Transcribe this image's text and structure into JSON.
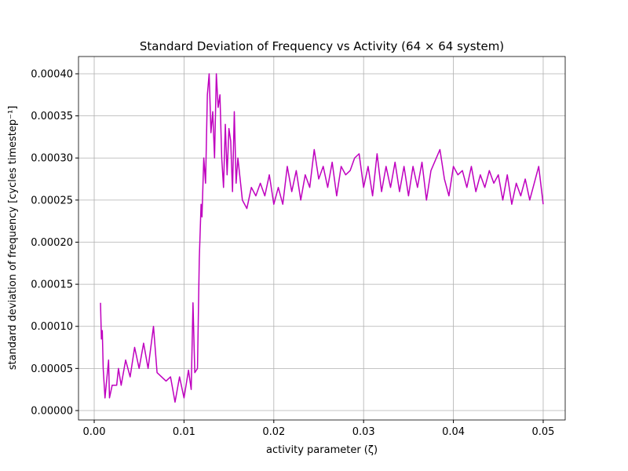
{
  "chart_data": {
    "type": "line",
    "title": "Standard Deviation of Frequency vs Activity (64 × 64 system)",
    "x_label": "activity parameter (ζ)",
    "y_label": "standard deviation of frequency [cycles timestep⁻¹]",
    "x": [
      0.0007,
      0.0008,
      0.0009,
      0.001,
      0.0012,
      0.0016,
      0.0017,
      0.002,
      0.0025,
      0.0027,
      0.003,
      0.0035,
      0.004,
      0.0045,
      0.005,
      0.0055,
      0.006,
      0.0066,
      0.007,
      0.008,
      0.0085,
      0.009,
      0.0095,
      0.01,
      0.0105,
      0.0108,
      0.011,
      0.0112,
      0.0115,
      0.0117,
      0.0119,
      0.012,
      0.0122,
      0.0124,
      0.0126,
      0.0128,
      0.013,
      0.0132,
      0.0134,
      0.0136,
      0.0138,
      0.014,
      0.0142,
      0.0144,
      0.0146,
      0.0148,
      0.015,
      0.0152,
      0.0154,
      0.0156,
      0.0158,
      0.016,
      0.0165,
      0.017,
      0.0175,
      0.018,
      0.0185,
      0.019,
      0.0195,
      0.02,
      0.0205,
      0.021,
      0.0215,
      0.022,
      0.0225,
      0.023,
      0.0235,
      0.024,
      0.0245,
      0.025,
      0.0255,
      0.026,
      0.0265,
      0.027,
      0.0275,
      0.028,
      0.0285,
      0.029,
      0.0295,
      0.03,
      0.0305,
      0.031,
      0.0315,
      0.032,
      0.0325,
      0.033,
      0.0335,
      0.034,
      0.0345,
      0.035,
      0.0355,
      0.036,
      0.0365,
      0.037,
      0.0375,
      0.0385,
      0.039,
      0.0395,
      0.04,
      0.0405,
      0.041,
      0.0415,
      0.042,
      0.0425,
      0.043,
      0.0435,
      0.044,
      0.0445,
      0.045,
      0.0455,
      0.046,
      0.0465,
      0.047,
      0.0475,
      0.048,
      0.0485,
      0.049,
      0.0495,
      0.05
    ],
    "series": [
      {
        "color": "#bf00bf",
        "values": [
          0.000128,
          8.5e-05,
          9.5e-05,
          5e-05,
          1.5e-05,
          6e-05,
          1.5e-05,
          3e-05,
          3e-05,
          5e-05,
          3e-05,
          6e-05,
          4e-05,
          7.5e-05,
          5e-05,
          8e-05,
          5e-05,
          0.0001,
          4.5e-05,
          3.5e-05,
          4e-05,
          1e-05,
          4e-05,
          1.5e-05,
          4.8e-05,
          2.5e-05,
          0.000128,
          4.5e-05,
          5e-05,
          0.00018,
          0.000245,
          0.00023,
          0.0003,
          0.00027,
          0.000375,
          0.0004,
          0.00033,
          0.000355,
          0.0003,
          0.0004,
          0.00036,
          0.000375,
          0.0003,
          0.000265,
          0.00034,
          0.00028,
          0.000335,
          0.00032,
          0.00026,
          0.000355,
          0.00027,
          0.0003,
          0.00025,
          0.00024,
          0.000265,
          0.000255,
          0.00027,
          0.000255,
          0.00028,
          0.000245,
          0.000265,
          0.000245,
          0.00029,
          0.00026,
          0.000285,
          0.00025,
          0.00028,
          0.000265,
          0.00031,
          0.000275,
          0.00029,
          0.000265,
          0.000295,
          0.000255,
          0.00029,
          0.00028,
          0.000285,
          0.0003,
          0.000305,
          0.000265,
          0.00029,
          0.000255,
          0.000305,
          0.00026,
          0.00029,
          0.000265,
          0.000295,
          0.00026,
          0.00029,
          0.000255,
          0.00029,
          0.000265,
          0.000295,
          0.00025,
          0.000285,
          0.00031,
          0.000275,
          0.000255,
          0.00029,
          0.00028,
          0.000285,
          0.000265,
          0.00029,
          0.00026,
          0.00028,
          0.000265,
          0.000285,
          0.00027,
          0.00028,
          0.00025,
          0.00028,
          0.000245,
          0.00027,
          0.000255,
          0.000275,
          0.00025,
          0.00027,
          0.00029,
          0.000245
        ]
      }
    ],
    "xlim": [
      -0.00175,
      0.05245
    ],
    "ylim": [
      -1.12e-05,
      0.0004205
    ],
    "xticks": [
      {
        "value": 0,
        "label": "0.00"
      },
      0.01,
      0.02,
      0.03,
      0.04,
      0.05
    ],
    "yticks": [
      {
        "value": 0,
        "label": "0.00000"
      },
      5e-05,
      {
        "value": 0.0001,
        "label": "0.00010"
      },
      0.00015,
      {
        "value": 0.0002,
        "label": "0.00020"
      },
      0.00025,
      {
        "value": 0.0003,
        "label": "0.00030"
      },
      0.00035,
      {
        "value": 0.0004,
        "label": "0.00040"
      }
    ],
    "grid": true
  }
}
